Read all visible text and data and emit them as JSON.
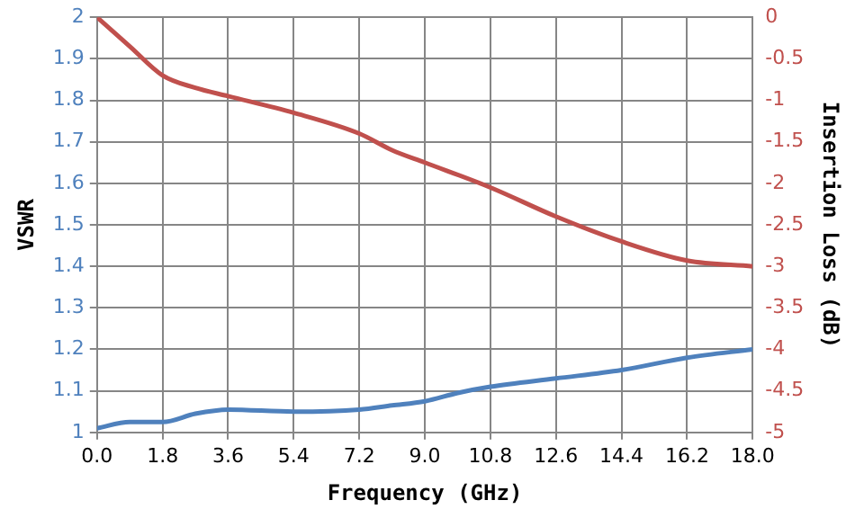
{
  "chart_data": {
    "type": "line",
    "xlabel": "Frequency (GHz)",
    "ylabel": "VSWR",
    "y2label": "Insertion Loss (dB)",
    "xlim": [
      0,
      18
    ],
    "xticks": [
      {
        "value": 0,
        "label": "0.0"
      },
      1.8,
      3.6,
      5.4,
      7.2,
      {
        "value": 9,
        "label": "9.0"
      },
      10.8,
      12.6,
      14.4,
      16.2,
      {
        "value": 18,
        "label": "18.0"
      }
    ],
    "ylim": [
      1,
      2
    ],
    "yticks": [
      1,
      1.1,
      1.2,
      1.3,
      1.4,
      1.5,
      1.6,
      1.7,
      1.8,
      1.9,
      2
    ],
    "y2lim": [
      -5,
      0
    ],
    "y2ticks": [
      -5,
      -4.5,
      -4,
      -3.5,
      -3,
      -2.5,
      -2,
      -1.5,
      -1,
      -0.5,
      0
    ],
    "grid": true,
    "legend": false,
    "series": [
      {
        "color": "#4f81bd",
        "x": [
          0,
          0.9,
          1.8,
          2.7,
          3.6,
          5.4,
          7.2,
          8.1,
          9,
          9.9,
          10.8,
          12.6,
          14.4,
          16.2,
          18
        ],
        "values": [
          1.01,
          1.025,
          1.025,
          1.045,
          1.055,
          1.05,
          1.055,
          1.065,
          1.075,
          1.095,
          1.11,
          1.13,
          1.15,
          1.18,
          1.2
        ]
      },
      {
        "color": "#c0504d",
        "axis": "y2",
        "x": [
          0,
          0.9,
          1.8,
          2.7,
          3.6,
          5.4,
          7.2,
          8.1,
          9,
          10.8,
          12.6,
          14.4,
          16.2,
          18
        ],
        "values": [
          0,
          -0.35,
          -0.7,
          -0.85,
          -0.95,
          -1.15,
          -1.4,
          -1.6,
          -1.75,
          -2.05,
          -2.4,
          -2.7,
          -2.93,
          -3
        ]
      }
    ]
  }
}
